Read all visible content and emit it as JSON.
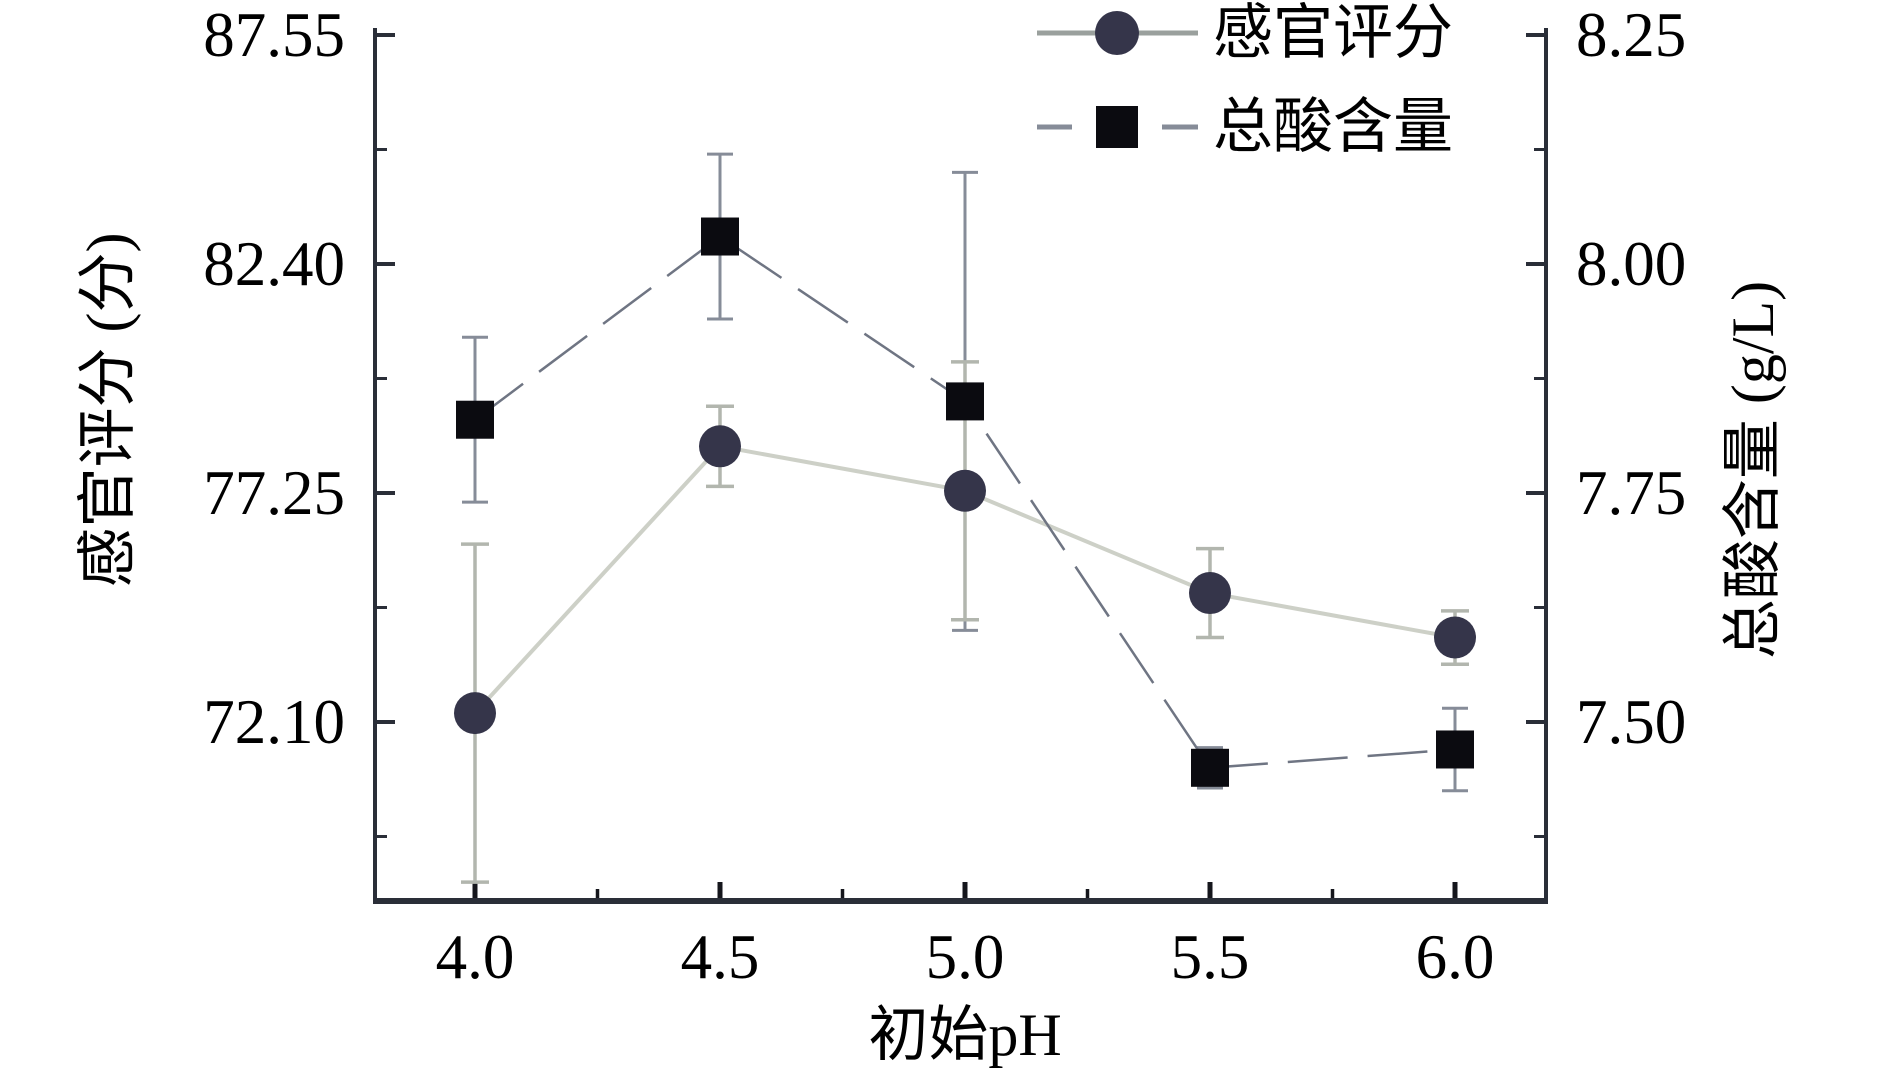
{
  "chart_data": {
    "type": "line",
    "title": "",
    "xlabel": "初始pH",
    "x": [
      4.0,
      4.5,
      5.0,
      5.5,
      6.0
    ],
    "x_tick_labels": [
      "4.0",
      "4.5",
      "5.0",
      "5.5",
      "6.0"
    ],
    "x_minor_ticks": [
      4.25,
      4.75,
      5.25,
      5.75
    ],
    "xlim": [
      3.79,
      6.19
    ],
    "grid": false,
    "legend_position": "top-right",
    "left_axis": {
      "label": "感官评分 (分)",
      "tick_labels": [
        "87.55",
        "82.40",
        "77.25",
        "72.10"
      ],
      "tick_values": [
        87.55,
        82.4,
        77.25,
        72.1
      ],
      "minor_ticks": [
        84.975,
        79.825,
        74.675,
        69.525
      ],
      "range": [
        68.05,
        87.66
      ]
    },
    "right_axis": {
      "label": "总酸含量 (g/L)",
      "tick_labels": [
        "8.25",
        "8.00",
        "7.75",
        "7.50"
      ],
      "tick_values": [
        8.25,
        8.0,
        7.75,
        7.5
      ],
      "minor_ticks": [
        8.125,
        7.875,
        7.625,
        7.375
      ],
      "range": [
        7.3,
        8.26
      ]
    },
    "series": [
      {
        "name": "感官评分",
        "axis": "left",
        "marker": "circle",
        "line_style": "solid",
        "values": [
          72.3,
          78.3,
          77.3,
          75.0,
          74.0
        ],
        "errors": [
          3.8,
          0.9,
          2.9,
          1.0,
          0.6
        ]
      },
      {
        "name": "总酸含量",
        "axis": "right",
        "marker": "square",
        "line_style": "dashed",
        "values": [
          7.83,
          8.03,
          7.85,
          7.45,
          7.47
        ],
        "errors": [
          0.09,
          0.09,
          0.25,
          0.022,
          0.045
        ]
      }
    ]
  },
  "colors": {
    "background": "#ffffff",
    "spine": "#2a2e38",
    "x_tick": "#15161c",
    "sensory_marker": "#35354a",
    "sensory_line": "#cdd0c7",
    "sensory_errorbar": "#b2b6ae",
    "acid_marker": "#0b0b10",
    "acid_line": "#6f7583",
    "acid_errorbar": "#868c98"
  }
}
